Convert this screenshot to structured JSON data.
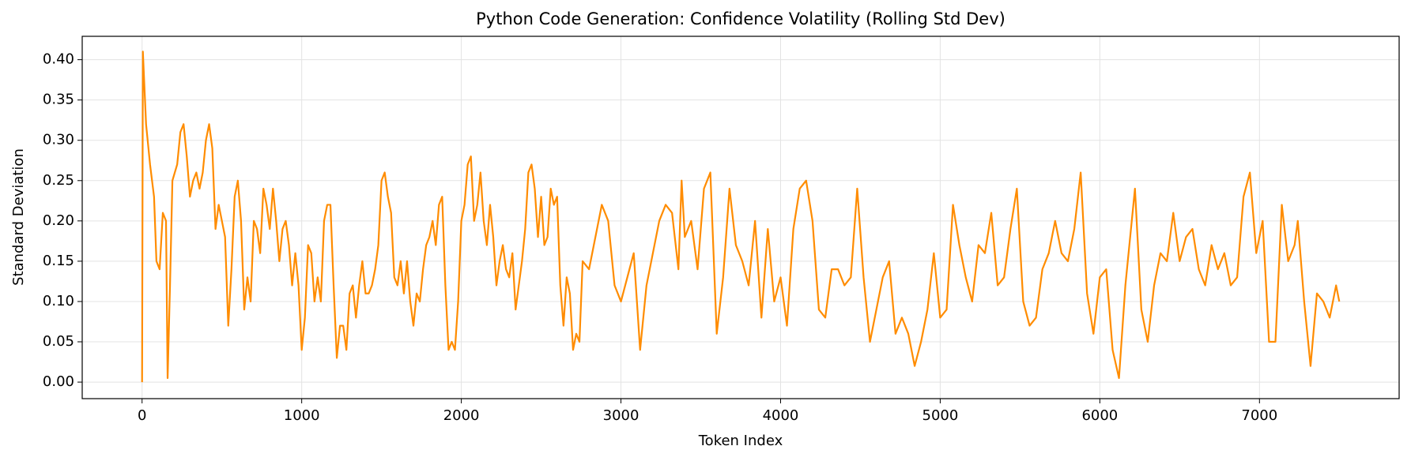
{
  "chart_data": {
    "type": "line",
    "title": "Python Code Generation: Confidence Volatility (Rolling Std Dev)",
    "x_label": "Token Index",
    "y_label": "Standard Deviation",
    "x": [
      0,
      5,
      25,
      50,
      75,
      90,
      110,
      130,
      150,
      160,
      175,
      190,
      220,
      240,
      260,
      280,
      300,
      320,
      340,
      360,
      380,
      400,
      420,
      440,
      460,
      480,
      500,
      520,
      540,
      560,
      580,
      600,
      620,
      640,
      660,
      680,
      700,
      720,
      740,
      760,
      780,
      800,
      820,
      840,
      860,
      880,
      900,
      920,
      940,
      960,
      980,
      1000,
      1020,
      1040,
      1060,
      1080,
      1100,
      1120,
      1140,
      1160,
      1180,
      1200,
      1220,
      1240,
      1260,
      1280,
      1300,
      1320,
      1340,
      1360,
      1380,
      1400,
      1420,
      1440,
      1460,
      1480,
      1500,
      1520,
      1540,
      1560,
      1580,
      1600,
      1620,
      1640,
      1660,
      1680,
      1700,
      1720,
      1740,
      1760,
      1780,
      1800,
      1820,
      1840,
      1860,
      1880,
      1900,
      1920,
      1940,
      1960,
      1980,
      2000,
      2020,
      2040,
      2060,
      2080,
      2100,
      2120,
      2140,
      2160,
      2180,
      2200,
      2220,
      2240,
      2260,
      2280,
      2300,
      2320,
      2340,
      2360,
      2380,
      2400,
      2420,
      2440,
      2460,
      2480,
      2500,
      2520,
      2540,
      2560,
      2580,
      2600,
      2620,
      2640,
      2660,
      2680,
      2700,
      2720,
      2740,
      2760,
      2800,
      2840,
      2880,
      2920,
      2960,
      3000,
      3040,
      3080,
      3120,
      3160,
      3200,
      3240,
      3280,
      3320,
      3360,
      3380,
      3400,
      3440,
      3480,
      3520,
      3560,
      3600,
      3640,
      3680,
      3720,
      3760,
      3800,
      3840,
      3880,
      3920,
      3960,
      4000,
      4040,
      4080,
      4120,
      4160,
      4200,
      4240,
      4280,
      4320,
      4360,
      4400,
      4440,
      4480,
      4520,
      4560,
      4600,
      4640,
      4680,
      4720,
      4760,
      4800,
      4840,
      4880,
      4920,
      4960,
      5000,
      5040,
      5080,
      5120,
      5160,
      5200,
      5240,
      5280,
      5320,
      5360,
      5400,
      5440,
      5480,
      5520,
      5560,
      5600,
      5640,
      5680,
      5720,
      5760,
      5800,
      5840,
      5880,
      5920,
      5960,
      6000,
      6040,
      6080,
      6120,
      6160,
      6200,
      6220,
      6260,
      6300,
      6340,
      6380,
      6420,
      6460,
      6500,
      6540,
      6580,
      6620,
      6660,
      6700,
      6740,
      6780,
      6820,
      6860,
      6900,
      6940,
      6980,
      7020,
      7060,
      7100,
      7140,
      7180,
      7220,
      7240,
      7280,
      7320,
      7360,
      7400,
      7440,
      7480,
      7500
    ],
    "series": [
      {
        "name": "Rolling Std Dev",
        "color": "#ff8c00",
        "values": [
          0.0,
          0.41,
          0.32,
          0.27,
          0.23,
          0.15,
          0.14,
          0.21,
          0.2,
          0.005,
          0.12,
          0.25,
          0.27,
          0.31,
          0.32,
          0.28,
          0.23,
          0.25,
          0.26,
          0.24,
          0.26,
          0.3,
          0.32,
          0.29,
          0.19,
          0.22,
          0.2,
          0.18,
          0.07,
          0.14,
          0.23,
          0.25,
          0.2,
          0.09,
          0.13,
          0.1,
          0.2,
          0.19,
          0.16,
          0.24,
          0.22,
          0.19,
          0.24,
          0.2,
          0.15,
          0.19,
          0.2,
          0.17,
          0.12,
          0.16,
          0.12,
          0.04,
          0.08,
          0.17,
          0.16,
          0.1,
          0.13,
          0.1,
          0.2,
          0.22,
          0.22,
          0.12,
          0.03,
          0.07,
          0.07,
          0.04,
          0.11,
          0.12,
          0.08,
          0.12,
          0.15,
          0.11,
          0.11,
          0.12,
          0.14,
          0.17,
          0.25,
          0.26,
          0.23,
          0.21,
          0.13,
          0.12,
          0.15,
          0.11,
          0.15,
          0.1,
          0.07,
          0.11,
          0.1,
          0.14,
          0.17,
          0.18,
          0.2,
          0.17,
          0.22,
          0.23,
          0.12,
          0.04,
          0.05,
          0.04,
          0.1,
          0.2,
          0.22,
          0.27,
          0.28,
          0.2,
          0.22,
          0.26,
          0.2,
          0.17,
          0.22,
          0.18,
          0.12,
          0.15,
          0.17,
          0.14,
          0.13,
          0.16,
          0.09,
          0.12,
          0.15,
          0.19,
          0.26,
          0.27,
          0.24,
          0.18,
          0.23,
          0.17,
          0.18,
          0.24,
          0.22,
          0.23,
          0.12,
          0.07,
          0.13,
          0.11,
          0.04,
          0.06,
          0.05,
          0.15,
          0.14,
          0.18,
          0.22,
          0.2,
          0.12,
          0.1,
          0.13,
          0.16,
          0.04,
          0.12,
          0.16,
          0.2,
          0.22,
          0.21,
          0.14,
          0.25,
          0.18,
          0.2,
          0.14,
          0.24,
          0.26,
          0.06,
          0.13,
          0.24,
          0.17,
          0.15,
          0.12,
          0.2,
          0.08,
          0.19,
          0.1,
          0.13,
          0.07,
          0.19,
          0.24,
          0.25,
          0.2,
          0.09,
          0.08,
          0.14,
          0.14,
          0.12,
          0.13,
          0.24,
          0.13,
          0.05,
          0.09,
          0.13,
          0.15,
          0.06,
          0.08,
          0.06,
          0.02,
          0.05,
          0.09,
          0.16,
          0.08,
          0.09,
          0.22,
          0.17,
          0.13,
          0.1,
          0.17,
          0.16,
          0.21,
          0.12,
          0.13,
          0.19,
          0.24,
          0.1,
          0.07,
          0.08,
          0.14,
          0.16,
          0.2,
          0.16,
          0.15,
          0.19,
          0.26,
          0.11,
          0.06,
          0.13,
          0.14,
          0.04,
          0.005,
          0.12,
          0.2,
          0.24,
          0.09,
          0.05,
          0.12,
          0.16,
          0.15,
          0.21,
          0.15,
          0.18,
          0.19,
          0.14,
          0.12,
          0.17,
          0.14,
          0.16,
          0.12,
          0.13,
          0.23,
          0.26,
          0.16,
          0.2,
          0.05,
          0.05,
          0.22,
          0.15,
          0.17,
          0.2,
          0.1,
          0.02,
          0.11,
          0.1,
          0.08,
          0.12,
          0.1
        ]
      }
    ],
    "xlim": [
      -375,
      7875
    ],
    "ylim": [
      -0.0205,
      0.429
    ],
    "xticks": [
      0,
      1000,
      2000,
      3000,
      4000,
      5000,
      6000,
      7000
    ],
    "yticks": [
      {
        "value": 0,
        "label": "0.00"
      },
      {
        "value": 0.05,
        "label": "0.05"
      },
      {
        "value": 0.1,
        "label": "0.10"
      },
      {
        "value": 0.15,
        "label": "0.15"
      },
      {
        "value": 0.2,
        "label": "0.20"
      },
      {
        "value": 0.25,
        "label": "0.25"
      },
      {
        "value": 0.3,
        "label": "0.30"
      },
      {
        "value": 0.35,
        "label": "0.35"
      },
      {
        "value": 0.4,
        "label": "0.40"
      }
    ],
    "grid": true
  }
}
